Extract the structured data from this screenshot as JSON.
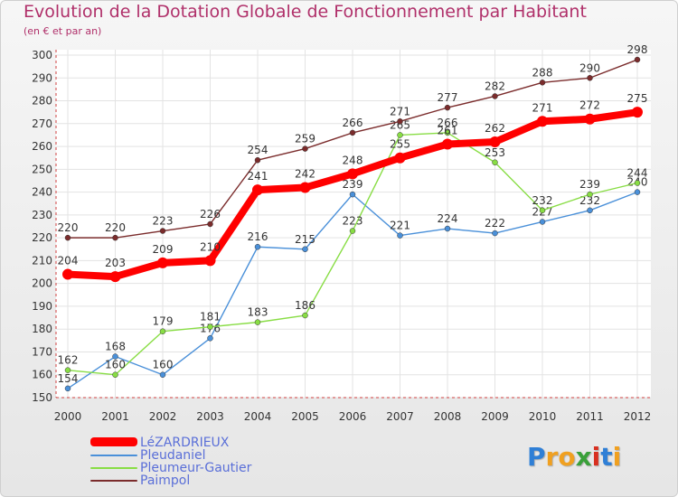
{
  "chart_data": {
    "type": "line",
    "title": "Evolution de la Dotation Globale de Fonctionnement par Habitant",
    "subtitle": "(en € et par an)",
    "x": [
      "2000",
      "2001",
      "2002",
      "2003",
      "2004",
      "2005",
      "2006",
      "2007",
      "2008",
      "2009",
      "2010",
      "2011",
      "2012"
    ],
    "ylim": [
      150,
      300
    ],
    "yticks": [
      150,
      160,
      170,
      180,
      190,
      200,
      210,
      220,
      230,
      240,
      250,
      260,
      270,
      280,
      290,
      300
    ],
    "grid": true,
    "legend_position": "bottom-left",
    "series": [
      {
        "name": "Pleudaniel",
        "color": "#4a90d9",
        "values": [
          154,
          168,
          160,
          176,
          216,
          215,
          239,
          221,
          224,
          222,
          227,
          232,
          240
        ],
        "labels": [
          "154",
          "168",
          "160",
          "176",
          "216",
          "215",
          "239",
          "221",
          "224",
          "222",
          "227",
          "232",
          "240"
        ]
      },
      {
        "name": "Pleumeur-Gautier",
        "color": "#88dd44",
        "values": [
          162,
          160,
          179,
          181,
          183,
          186,
          223,
          265,
          266,
          253,
          232,
          239,
          244
        ],
        "labels": [
          "162",
          "160",
          "179",
          "181",
          "183",
          "186",
          "223",
          "265",
          "266",
          "253",
          "232",
          "239",
          "244"
        ]
      },
      {
        "name": "Paimpol",
        "color": "#7b2c2c",
        "values": [
          220,
          220,
          223,
          226,
          254,
          259,
          266,
          271,
          277,
          282,
          288,
          290,
          298
        ],
        "labels": [
          "220",
          "220",
          "223",
          "226",
          "254",
          "259",
          "266",
          "271",
          "277",
          "282",
          "288",
          "290",
          "298"
        ]
      },
      {
        "name": "LéZARDRIEUX",
        "color": "#ff0000",
        "values": [
          204,
          203,
          209,
          210,
          241,
          242,
          248,
          255,
          261,
          262,
          271,
          272,
          275
        ],
        "labels": [
          "204",
          "203",
          "209",
          "210",
          "241",
          "242",
          "248",
          "255",
          "261",
          "262",
          "271",
          "272",
          "275"
        ]
      }
    ]
  },
  "legend": {
    "items": [
      {
        "label": "LéZARDRIEUX",
        "color": "#ff0000"
      },
      {
        "label": "Pleudaniel",
        "color": "#4a90d9"
      },
      {
        "label": "Pleumeur-Gautier",
        "color": "#88dd44"
      },
      {
        "label": "Paimpol",
        "color": "#7b2c2c"
      }
    ]
  },
  "logo": {
    "letters": [
      {
        "ch": "P",
        "color": "#2f7fd6"
      },
      {
        "ch": "r",
        "color": "#f0a020"
      },
      {
        "ch": "o",
        "color": "#f0a020"
      },
      {
        "ch": "x",
        "color": "#3aa03a"
      },
      {
        "ch": "i",
        "color": "#d83020"
      },
      {
        "ch": "t",
        "color": "#2f7fd6"
      },
      {
        "ch": "i",
        "color": "#f0a020"
      }
    ]
  }
}
